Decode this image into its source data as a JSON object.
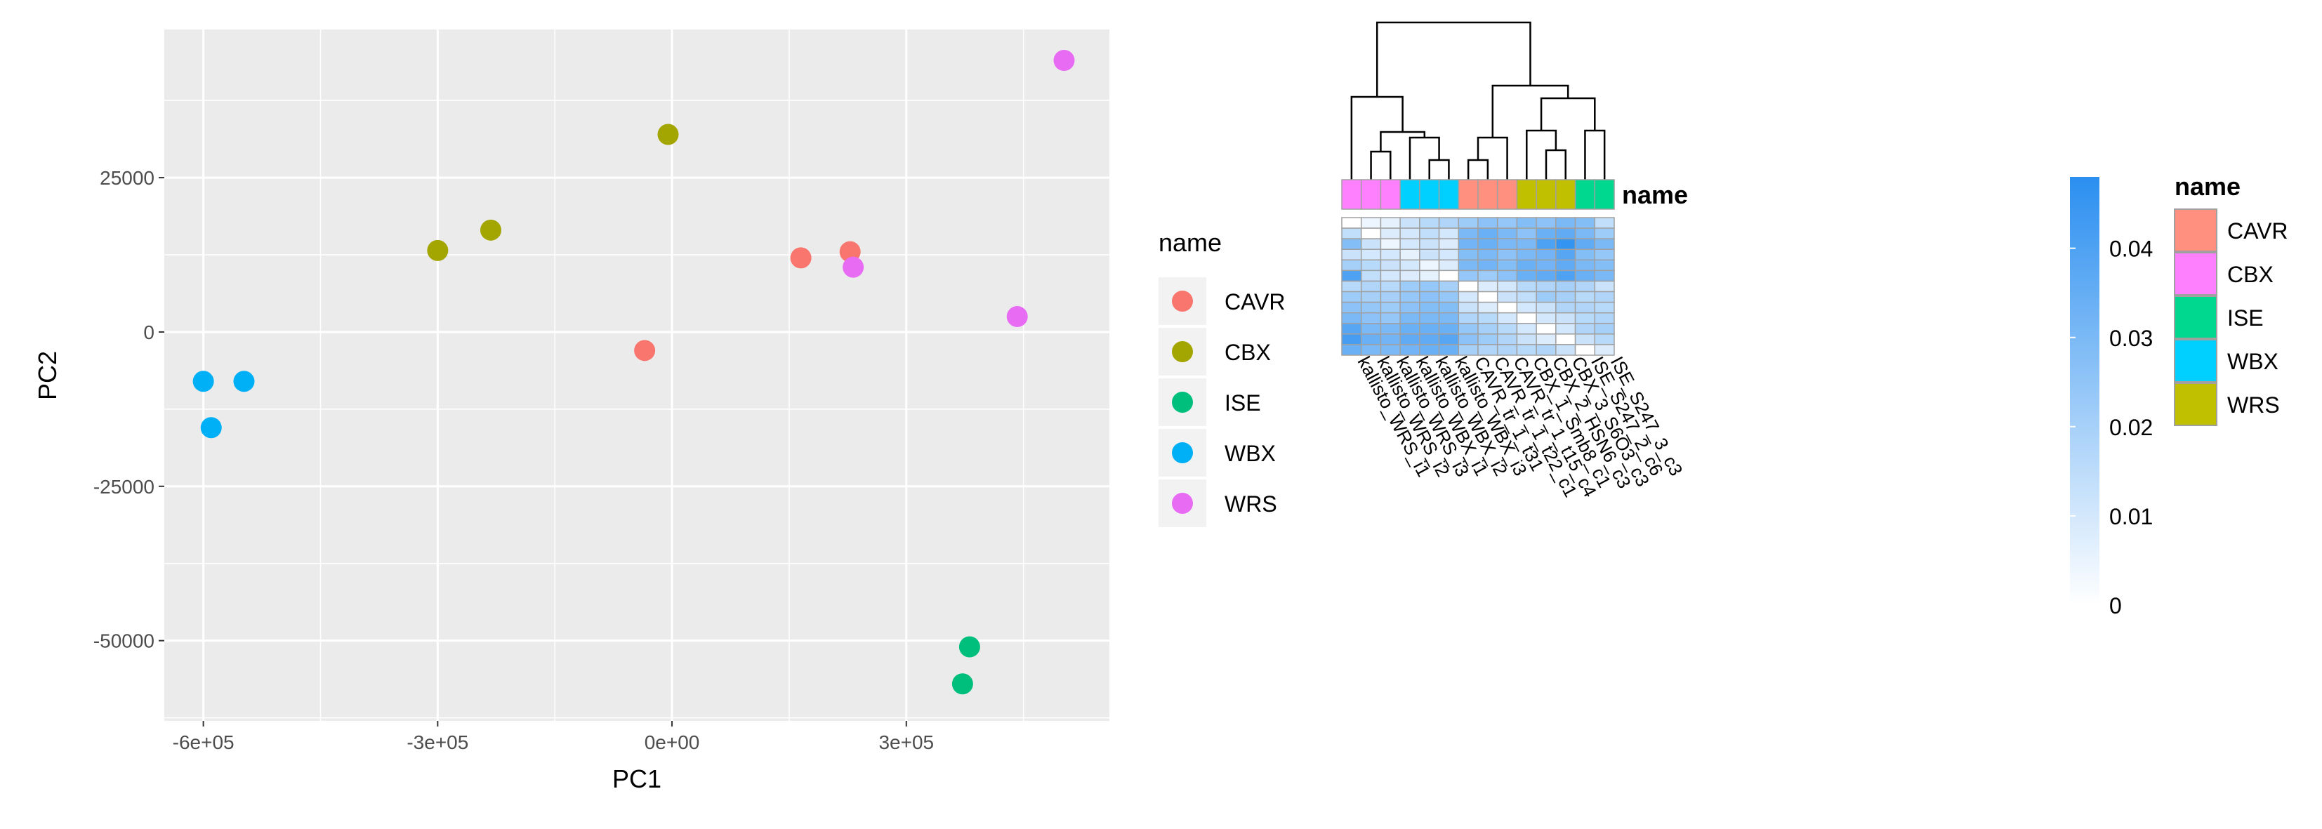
{
  "colors": {
    "CAVR": "#F8766D",
    "CBX": "#A3A500",
    "ISE": "#00BF7D",
    "WBX": "#00B0F6",
    "WRS": "#E76BF3",
    "panel_bg": "#EBEBEB",
    "grid": "#FFFFFF",
    "ann_CAVR": "#FF9080",
    "ann_CBX": "#FF80FF",
    "ann_ISE": "#00D890",
    "ann_WBX": "#00D0FF",
    "ann_WRS": "#C0C000",
    "scale_low": "#FFFFFF",
    "scale_high": "#2B8FF0"
  },
  "chart_data": [
    {
      "type": "scatter",
      "xlabel": "PC1",
      "ylabel": "PC2",
      "xlim": [
        -650000,
        560000
      ],
      "ylim": [
        -63000,
        49000
      ],
      "x_ticks": [
        -600000,
        -300000,
        0,
        300000
      ],
      "x_tick_labels": [
        "-6e+05",
        "-3e+05",
        "0e+00",
        "3e+05"
      ],
      "y_ticks": [
        25000,
        0,
        -25000,
        -50000
      ],
      "y_tick_labels": [
        "25000",
        "0",
        "-25000",
        "-50000"
      ],
      "grid": true,
      "legend": {
        "title": "name",
        "placement": "right",
        "entries": [
          "CAVR",
          "CBX",
          "ISE",
          "WBX",
          "WRS"
        ]
      },
      "series": [
        {
          "name": "CAVR",
          "points": [
            [
              -35000,
              -3000
            ],
            [
              165000,
              12000
            ],
            [
              228000,
              13000
            ]
          ]
        },
        {
          "name": "CBX",
          "points": [
            [
              -300000,
              13200
            ],
            [
              -232000,
              16500
            ],
            [
              -5000,
              32000
            ]
          ]
        },
        {
          "name": "ISE",
          "points": [
            [
              381000,
              -51000
            ],
            [
              372000,
              -57000
            ]
          ]
        },
        {
          "name": "WBX",
          "points": [
            [
              -600000,
              -8000
            ],
            [
              -548000,
              -8000
            ],
            [
              -590000,
              -15500
            ]
          ]
        },
        {
          "name": "WRS",
          "points": [
            [
              232000,
              10500
            ],
            [
              442000,
              2500
            ],
            [
              502000,
              44000
            ]
          ]
        }
      ]
    },
    {
      "type": "heatmap",
      "rows": 13,
      "columns": [
        {
          "label": "kallisto_WRS_i1",
          "group": "CBX"
        },
        {
          "label": "kallisto_WRS_i2",
          "group": "CBX"
        },
        {
          "label": "kallisto_WRS_i3",
          "group": "CBX"
        },
        {
          "label": "kallisto_WBX_i1",
          "group": "WBX"
        },
        {
          "label": "kallisto_WBX_i2",
          "group": "WBX"
        },
        {
          "label": "kallisto_WBX_i3",
          "group": "WBX"
        },
        {
          "label": "CAVR_tr_1_t31",
          "group": "CAVR"
        },
        {
          "label": "CAVR_tr_1_t22_c1",
          "group": "CAVR"
        },
        {
          "label": "CAVR_tr_1_t15_c4",
          "group": "CAVR"
        },
        {
          "label": "CBX_1_Smb8_c1",
          "group": "WRS"
        },
        {
          "label": "CBX_2_HSN6_c3",
          "group": "WRS"
        },
        {
          "label": "CBX_3_S6O3_c3",
          "group": "WRS"
        },
        {
          "label": "ISE_S247_2_c6",
          "group": "ISE"
        },
        {
          "label": "ISE_S247_3_c3",
          "group": "ISE"
        }
      ],
      "annotation_title": "name",
      "values": [
        [
          0.0,
          0.004,
          0.006,
          0.012,
          0.016,
          0.018,
          0.022,
          0.026,
          0.024,
          0.028,
          0.026,
          0.03,
          0.028,
          0.014
        ],
        [
          0.014,
          0.0,
          0.008,
          0.01,
          0.014,
          0.01,
          0.03,
          0.034,
          0.03,
          0.026,
          0.034,
          0.036,
          0.03,
          0.022
        ],
        [
          0.028,
          0.012,
          0.004,
          0.01,
          0.012,
          0.008,
          0.032,
          0.034,
          0.03,
          0.03,
          0.04,
          0.046,
          0.036,
          0.03
        ],
        [
          0.012,
          0.01,
          0.01,
          0.006,
          0.012,
          0.01,
          0.028,
          0.03,
          0.026,
          0.03,
          0.032,
          0.038,
          0.028,
          0.024
        ],
        [
          0.02,
          0.016,
          0.012,
          0.01,
          0.004,
          0.008,
          0.03,
          0.032,
          0.028,
          0.034,
          0.032,
          0.036,
          0.03,
          0.028
        ],
        [
          0.04,
          0.014,
          0.01,
          0.008,
          0.006,
          0.0,
          0.024,
          0.022,
          0.026,
          0.034,
          0.036,
          0.04,
          0.034,
          0.03
        ],
        [
          0.016,
          0.018,
          0.016,
          0.022,
          0.024,
          0.02,
          0.0,
          0.008,
          0.01,
          0.016,
          0.018,
          0.02,
          0.018,
          0.012
        ],
        [
          0.022,
          0.02,
          0.02,
          0.024,
          0.026,
          0.024,
          0.01,
          0.0,
          0.012,
          0.014,
          0.022,
          0.02,
          0.016,
          0.018
        ],
        [
          0.026,
          0.024,
          0.022,
          0.026,
          0.028,
          0.028,
          0.012,
          0.008,
          0.0,
          0.01,
          0.012,
          0.018,
          0.018,
          0.016
        ],
        [
          0.03,
          0.026,
          0.024,
          0.03,
          0.03,
          0.03,
          0.018,
          0.016,
          0.01,
          0.0,
          0.01,
          0.012,
          0.016,
          0.018
        ],
        [
          0.038,
          0.03,
          0.03,
          0.034,
          0.034,
          0.034,
          0.024,
          0.02,
          0.016,
          0.01,
          0.0,
          0.01,
          0.018,
          0.02
        ],
        [
          0.042,
          0.034,
          0.032,
          0.036,
          0.036,
          0.038,
          0.026,
          0.022,
          0.018,
          0.012,
          0.008,
          0.0,
          0.012,
          0.016
        ],
        [
          0.034,
          0.03,
          0.03,
          0.032,
          0.034,
          0.034,
          0.02,
          0.018,
          0.018,
          0.016,
          0.018,
          0.012,
          0.0,
          0.008
        ]
      ],
      "color_scale": {
        "min": 0,
        "max": 0.048,
        "ticks": [
          0.04,
          0.03,
          0.02,
          0.01,
          0
        ],
        "tick_labels": [
          "0.04",
          "0.03",
          "0.02",
          "0.01",
          "0"
        ]
      },
      "legend": {
        "title": "name",
        "entries": [
          "CAVR",
          "CBX",
          "ISE",
          "WBX",
          "WRS"
        ]
      }
    }
  ]
}
